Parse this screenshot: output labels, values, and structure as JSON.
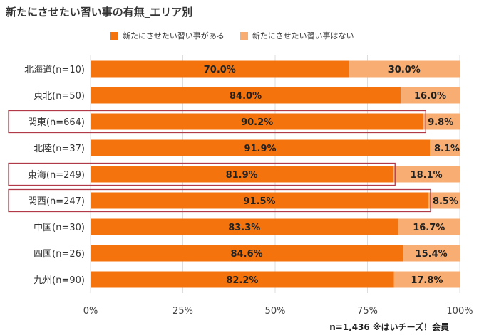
{
  "title": "新たにさせたい習い事の有無_エリア別",
  "footnote": "n=1,436 ※はいチーズ！会員",
  "colors": {
    "series1": "#F4730C",
    "series2": "#F8AE72",
    "highlight": "#B23A48",
    "grid": "#DDDDDD"
  },
  "chart_data": {
    "type": "bar",
    "orientation": "horizontal",
    "stacked": true,
    "categories": [
      "北海道(n=10)",
      "東北(n=50)",
      "関東(n=664)",
      "北陸(n=37)",
      "東海(n=249)",
      "関西(n=247)",
      "中国(n=30)",
      "四国(n=26)",
      "九州(n=90)"
    ],
    "series": [
      {
        "name": "新たにさせたい習い事がある",
        "values": [
          70.0,
          84.0,
          90.2,
          91.9,
          81.9,
          91.5,
          83.3,
          84.6,
          82.2
        ],
        "labels": [
          "70.0%",
          "84.0%",
          "90.2%",
          "91.9%",
          "81.9%",
          "91.5%",
          "83.3%",
          "84.6%",
          "82.2%"
        ]
      },
      {
        "name": "新たにさせたい習い事はない",
        "values": [
          30.0,
          16.0,
          9.8,
          8.1,
          18.1,
          8.5,
          16.7,
          15.4,
          17.8
        ],
        "labels": [
          "30.0%",
          "16.0%",
          "9.8%",
          "8.1%",
          "18.1%",
          "8.5%",
          "16.7%",
          "15.4%",
          "17.8%"
        ]
      }
    ],
    "xlim": [
      0,
      100
    ],
    "xticks": [
      0,
      25,
      50,
      75,
      100
    ],
    "xtick_labels": [
      "0%",
      "25%",
      "50%",
      "75%",
      "100%"
    ],
    "highlighted_categories": [
      "関東(n=664)",
      "東海(n=249)",
      "関西(n=247)"
    ],
    "legend": "top",
    "grid": true
  }
}
